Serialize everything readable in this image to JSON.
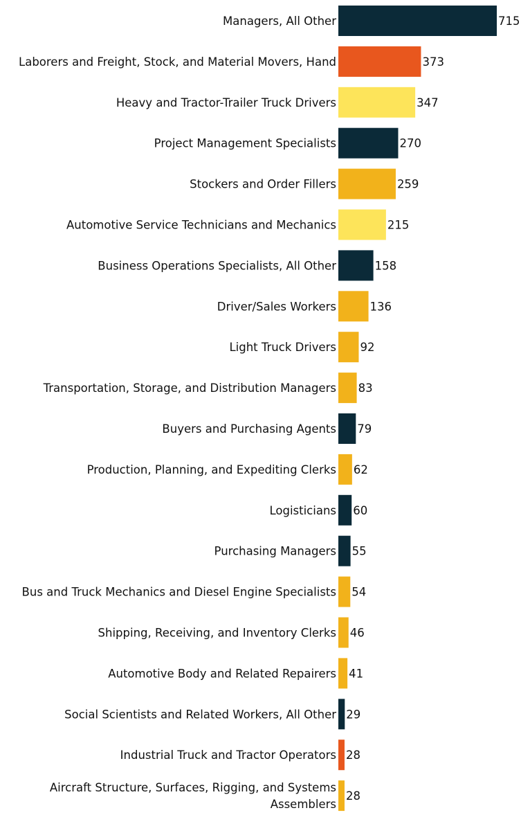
{
  "chart_data": {
    "type": "bar",
    "orientation": "horizontal",
    "title": "",
    "xlabel": "",
    "ylabel": "",
    "xlim": [
      0,
      715
    ],
    "grid": false,
    "legend": "none",
    "categories": [
      "Managers, All Other",
      "Laborers and Freight, Stock, and Material Movers, Hand",
      "Heavy and Tractor-Trailer Truck Drivers",
      "Project Management Specialists",
      "Stockers and Order Fillers",
      "Automotive Service Technicians and Mechanics",
      "Business Operations Specialists, All Other",
      "Driver/Sales Workers",
      "Light Truck Drivers",
      "Transportation, Storage, and Distribution Managers",
      "Buyers and Purchasing Agents",
      "Production, Planning, and Expediting Clerks",
      "Logisticians",
      "Purchasing Managers",
      "Bus and Truck Mechanics and Diesel Engine Specialists",
      "Shipping, Receiving, and Inventory Clerks",
      "Automotive Body and Related Repairers",
      "Social Scientists and Related Workers, All Other",
      "Industrial Truck and Tractor Operators",
      "Aircraft Structure, Surfaces, Rigging, and Systems Assemblers"
    ],
    "category_lines": [
      [
        "Managers, All Other"
      ],
      [
        "Laborers and Freight, Stock, and Material Movers, Hand"
      ],
      [
        "Heavy and Tractor-Trailer Truck Drivers"
      ],
      [
        "Project Management Specialists"
      ],
      [
        "Stockers and Order Fillers"
      ],
      [
        "Automotive Service Technicians and Mechanics"
      ],
      [
        "Business Operations Specialists, All Other"
      ],
      [
        "Driver/Sales Workers"
      ],
      [
        "Light Truck Drivers"
      ],
      [
        "Transportation, Storage, and Distribution Managers"
      ],
      [
        "Buyers and Purchasing Agents"
      ],
      [
        "Production, Planning, and Expediting Clerks"
      ],
      [
        "Logisticians"
      ],
      [
        "Purchasing Managers"
      ],
      [
        "Bus and Truck Mechanics and Diesel Engine Specialists"
      ],
      [
        "Shipping, Receiving, and Inventory Clerks"
      ],
      [
        "Automotive Body and Related Repairers"
      ],
      [
        "Social Scientists and Related Workers, All Other"
      ],
      [
        "Industrial Truck and Tractor Operators"
      ],
      [
        "Aircraft Structure, Surfaces, Rigging, and Systems",
        "Assemblers"
      ]
    ],
    "values": [
      715,
      373,
      347,
      270,
      259,
      215,
      158,
      136,
      92,
      83,
      79,
      62,
      60,
      55,
      54,
      46,
      41,
      29,
      28,
      28
    ],
    "colors": [
      "#0b2a38",
      "#e8571e",
      "#fde45a",
      "#0b2a38",
      "#f2b21b",
      "#fde45a",
      "#0b2a38",
      "#f2b21b",
      "#f2b21b",
      "#f2b21b",
      "#0b2a38",
      "#f2b21b",
      "#0b2a38",
      "#0b2a38",
      "#f2b21b",
      "#f2b21b",
      "#f2b21b",
      "#0b2a38",
      "#e8571e",
      "#f2b21b"
    ]
  }
}
